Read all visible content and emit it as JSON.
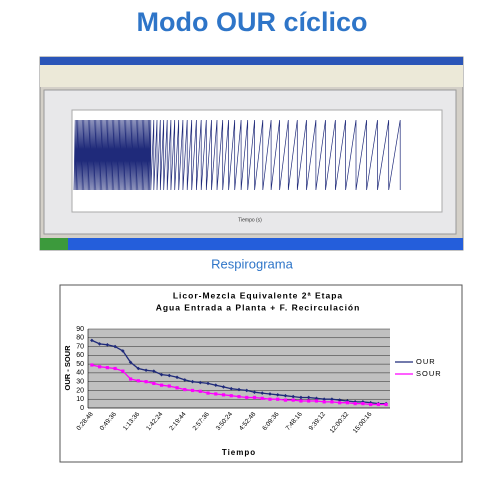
{
  "slide": {
    "title": "Modo OUR cíclico",
    "caption": "Respirograma",
    "screenshot_x_label": "Tiempo (s)"
  },
  "chart_data": {
    "type": "line",
    "title": [
      "Licor-Mezcla Equivalente 2ª Etapa",
      "Agua Entrada a Planta + F. Recirculación"
    ],
    "x_label": "Tiempo",
    "y_label": "OUR - SOUR",
    "categories": [
      "0:28:48",
      null,
      null,
      "0:49:36",
      null,
      null,
      "1:13:36",
      null,
      null,
      "1:42:24",
      null,
      null,
      "2:19:44",
      null,
      null,
      "2:57:36",
      null,
      null,
      "3:50:24",
      null,
      null,
      "4:52:48",
      null,
      null,
      "6:09:36",
      null,
      null,
      "7:48:16",
      null,
      null,
      "9:39:12",
      null,
      null,
      "12:00:32",
      null,
      null,
      "15:00:16",
      null,
      null
    ],
    "series": [
      {
        "name": "OUR",
        "color": "#1f2a7a",
        "values": [
          77,
          73,
          72,
          70,
          65,
          52,
          45,
          43,
          42,
          38,
          37,
          35,
          32,
          30,
          29,
          28,
          26,
          24,
          22,
          21,
          20,
          18,
          17,
          16,
          15,
          14,
          13,
          12,
          12,
          11,
          10,
          10,
          9,
          8,
          7,
          7,
          6,
          5,
          5
        ]
      },
      {
        "name": "SOUR",
        "color": "#ff00ff",
        "values": [
          49,
          47,
          46,
          45,
          42,
          33,
          31,
          30,
          28,
          26,
          25,
          23,
          21,
          20,
          19,
          17,
          16,
          15,
          14,
          13,
          12,
          12,
          11,
          10,
          10,
          9,
          9,
          8,
          8,
          8,
          7,
          7,
          6,
          6,
          5,
          5,
          4,
          4,
          4
        ]
      }
    ],
    "ylim": [
      0,
      90
    ],
    "yticks": [
      0,
      10,
      20,
      30,
      40,
      50,
      60,
      70,
      80,
      90
    ],
    "grid": true,
    "legend": "right"
  }
}
